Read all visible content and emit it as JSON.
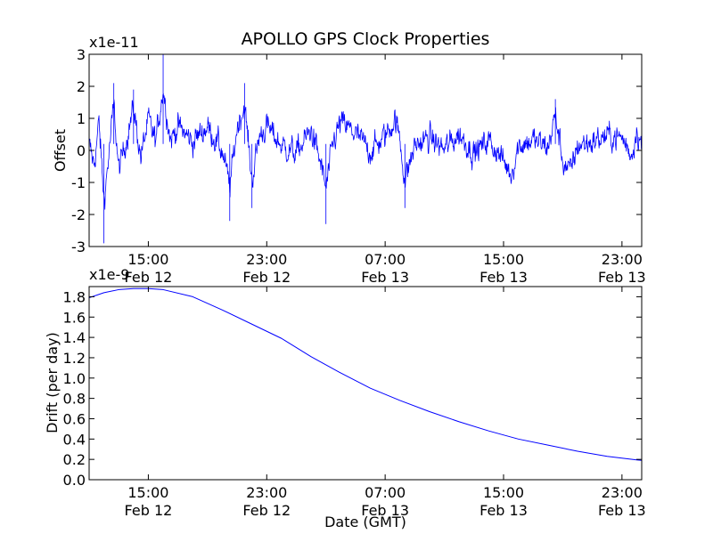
{
  "title": "APOLLO GPS Clock Properties",
  "colors": {
    "line": "#0000ff",
    "axes": "#000000",
    "background": "#ffffff"
  },
  "chart_data": [
    {
      "type": "line",
      "ylabel": "Offset",
      "xlabel": "",
      "y_multiplier": "x1e-11",
      "ylim": [
        -3,
        3
      ],
      "y_ticks": [
        "3",
        "2",
        "1",
        "0",
        "-1",
        "-2",
        "-3"
      ],
      "y_tick_values": [
        3,
        2,
        1,
        0,
        -1,
        -2,
        -3
      ],
      "xlim": [
        "2013-02-12T11:00",
        "2013-02-14T00:20"
      ],
      "x_ticks": [
        {
          "time": "2013-02-12T15:00",
          "line1": "15:00",
          "line2": "Feb 12"
        },
        {
          "time": "2013-02-12T23:00",
          "line1": "23:00",
          "line2": "Feb 12"
        },
        {
          "time": "2013-02-13T07:00",
          "line1": "07:00",
          "line2": "Feb 13"
        },
        {
          "time": "2013-02-13T15:00",
          "line1": "15:00",
          "line2": "Feb 13"
        },
        {
          "time": "2013-02-13T23:00",
          "line1": "23:00",
          "line2": "Feb 13"
        }
      ],
      "series": [
        {
          "style": "noisy",
          "points": [
            [
              "2013-02-12T11:00",
              0.0
            ],
            [
              "2013-02-12T11:20",
              -1.0
            ],
            [
              "2013-02-12T11:40",
              1.2
            ],
            [
              "2013-02-12T12:00",
              -2.9
            ],
            [
              "2013-02-12T12:20",
              -0.5
            ],
            [
              "2013-02-12T12:40",
              2.1
            ],
            [
              "2013-02-12T13:00",
              -1.3
            ],
            [
              "2013-02-12T13:30",
              0.3
            ],
            [
              "2013-02-12T14:00",
              1.9
            ],
            [
              "2013-02-12T14:30",
              -0.6
            ],
            [
              "2013-02-12T15:00",
              1.3
            ],
            [
              "2013-02-12T15:30",
              0.2
            ],
            [
              "2013-02-12T16:00",
              3.0
            ],
            [
              "2013-02-12T16:30",
              0.3
            ],
            [
              "2013-02-12T17:00",
              1.0
            ],
            [
              "2013-02-12T18:00",
              0.2
            ],
            [
              "2013-02-12T19:00",
              1.0
            ],
            [
              "2013-02-12T20:00",
              -0.3
            ],
            [
              "2013-02-12T20:30",
              -2.2
            ],
            [
              "2013-02-12T21:00",
              1.0
            ],
            [
              "2013-02-12T21:30",
              2.1
            ],
            [
              "2013-02-12T22:00",
              -1.8
            ],
            [
              "2013-02-12T22:30",
              0.5
            ],
            [
              "2013-02-12T23:00",
              1.0
            ],
            [
              "2013-02-13T00:00",
              0.0
            ],
            [
              "2013-02-13T01:00",
              -0.4
            ],
            [
              "2013-02-13T02:00",
              0.8
            ],
            [
              "2013-02-13T02:40",
              -1.0
            ],
            [
              "2013-02-13T03:00",
              -2.3
            ],
            [
              "2013-02-13T03:30",
              0.2
            ],
            [
              "2013-02-13T04:00",
              1.2
            ],
            [
              "2013-02-13T05:00",
              0.6
            ],
            [
              "2013-02-13T06:00",
              -0.3
            ],
            [
              "2013-02-13T07:00",
              0.5
            ],
            [
              "2013-02-13T07:40",
              1.4
            ],
            [
              "2013-02-13T08:00",
              0.3
            ],
            [
              "2013-02-13T08:20",
              -1.8
            ],
            [
              "2013-02-13T09:00",
              0.0
            ],
            [
              "2013-02-13T10:00",
              0.4
            ],
            [
              "2013-02-13T11:00",
              -0.2
            ],
            [
              "2013-02-13T12:00",
              0.6
            ],
            [
              "2013-02-13T13:00",
              -0.4
            ],
            [
              "2013-02-13T14:00",
              0.3
            ],
            [
              "2013-02-13T15:00",
              -0.8
            ],
            [
              "2013-02-13T15:30",
              -1.5
            ],
            [
              "2013-02-13T16:00",
              0.0
            ],
            [
              "2013-02-13T17:00",
              0.3
            ],
            [
              "2013-02-13T18:00",
              -0.1
            ],
            [
              "2013-02-13T18:30",
              1.6
            ],
            [
              "2013-02-13T19:00",
              -0.8
            ],
            [
              "2013-02-13T19:30",
              -1.4
            ],
            [
              "2013-02-13T20:00",
              0.0
            ],
            [
              "2013-02-13T21:00",
              0.2
            ],
            [
              "2013-02-13T22:00",
              0.5
            ],
            [
              "2013-02-13T23:00",
              0.4
            ],
            [
              "2013-02-13T23:40",
              -0.5
            ],
            [
              "2013-02-14T00:00",
              0.9
            ],
            [
              "2013-02-14T00:20",
              0.0
            ]
          ]
        }
      ]
    },
    {
      "type": "line",
      "ylabel": "Drift (per day)",
      "xlabel": "Date (GMT)",
      "y_multiplier": "x1e-9",
      "ylim": [
        0.0,
        1.9
      ],
      "y_ticks": [
        "1.8",
        "1.6",
        "1.4",
        "1.2",
        "1.0",
        "0.8",
        "0.6",
        "0.4",
        "0.2",
        "0.0"
      ],
      "y_tick_values": [
        1.8,
        1.6,
        1.4,
        1.2,
        1.0,
        0.8,
        0.6,
        0.4,
        0.2,
        0.0
      ],
      "xlim": [
        "2013-02-12T11:00",
        "2013-02-14T00:20"
      ],
      "x_ticks": [
        {
          "time": "2013-02-12T15:00",
          "line1": "15:00",
          "line2": "Feb 12"
        },
        {
          "time": "2013-02-12T23:00",
          "line1": "23:00",
          "line2": "Feb 12"
        },
        {
          "time": "2013-02-13T07:00",
          "line1": "07:00",
          "line2": "Feb 13"
        },
        {
          "time": "2013-02-13T15:00",
          "line1": "15:00",
          "line2": "Feb 13"
        },
        {
          "time": "2013-02-13T23:00",
          "line1": "23:00",
          "line2": "Feb 13"
        }
      ],
      "series": [
        {
          "style": "smooth",
          "points": [
            [
              "2013-02-12T11:00",
              1.79
            ],
            [
              "2013-02-12T12:00",
              1.84
            ],
            [
              "2013-02-12T13:00",
              1.87
            ],
            [
              "2013-02-12T14:00",
              1.88
            ],
            [
              "2013-02-12T15:00",
              1.88
            ],
            [
              "2013-02-12T16:00",
              1.87
            ],
            [
              "2013-02-12T18:00",
              1.8
            ],
            [
              "2013-02-12T20:00",
              1.67
            ],
            [
              "2013-02-12T22:00",
              1.53
            ],
            [
              "2013-02-13T00:00",
              1.39
            ],
            [
              "2013-02-13T02:00",
              1.21
            ],
            [
              "2013-02-13T04:00",
              1.05
            ],
            [
              "2013-02-13T06:00",
              0.9
            ],
            [
              "2013-02-13T08:00",
              0.78
            ],
            [
              "2013-02-13T10:00",
              0.67
            ],
            [
              "2013-02-13T12:00",
              0.57
            ],
            [
              "2013-02-13T14:00",
              0.48
            ],
            [
              "2013-02-13T16:00",
              0.4
            ],
            [
              "2013-02-13T18:00",
              0.34
            ],
            [
              "2013-02-13T20:00",
              0.28
            ],
            [
              "2013-02-13T22:00",
              0.23
            ],
            [
              "2013-02-14T00:00",
              0.195
            ],
            [
              "2013-02-14T00:20",
              0.19
            ]
          ]
        }
      ]
    }
  ]
}
